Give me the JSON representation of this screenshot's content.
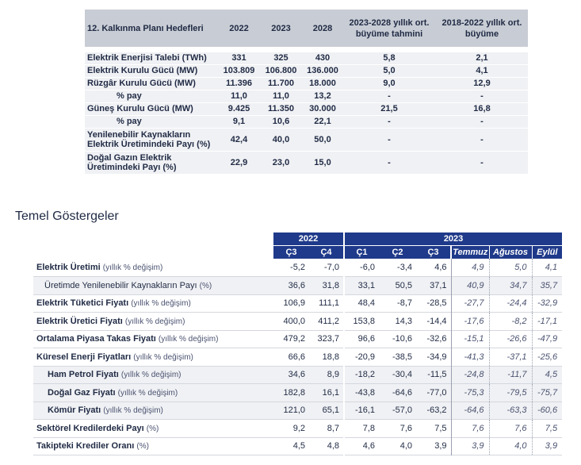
{
  "targets": {
    "headers": [
      "12. Kalkınma Planı Hedefleri",
      "2022",
      "2023",
      "2028",
      "2023-2028 yıllık ort. büyüme tahmini",
      "2018-2022 yıllık ort. büyüme"
    ],
    "rows": [
      {
        "label": "Elektrik Enerjisi Talebi (TWh)",
        "v2022": "331",
        "v2023": "325",
        "v2028": "430",
        "growth_est": "5,8",
        "growth_hist": "2,1"
      },
      {
        "label": "Elektrik Kurulu Gücü (MW)",
        "v2022": "103.809",
        "v2023": "106.800",
        "v2028": "136.000",
        "growth_est": "5,0",
        "growth_hist": "4,1"
      },
      {
        "label": "Rüzgâr Kurulu Gücü (MW)",
        "v2022": "11.396",
        "v2023": "11.700",
        "v2028": "18.000",
        "growth_est": "9,0",
        "growth_hist": "12,9"
      },
      {
        "label": "% pay",
        "v2022": "11,0",
        "v2023": "11,0",
        "v2028": "13,2",
        "growth_est": "-",
        "growth_hist": "-"
      },
      {
        "label": "Güneş Kurulu Gücü (MW)",
        "v2022": "9.425",
        "v2023": "11.350",
        "v2028": "30.000",
        "growth_est": "21,5",
        "growth_hist": "16,8"
      },
      {
        "label": "% pay",
        "v2022": "9,1",
        "v2023": "10,6",
        "v2028": "22,1",
        "growth_est": "-",
        "growth_hist": "-"
      },
      {
        "label": "Yenilenebilir Kaynakların Elektrik Üretimindeki Payı (%)",
        "v2022": "42,4",
        "v2023": "40,0",
        "v2028": "50,0",
        "growth_est": "-",
        "growth_hist": "-"
      },
      {
        "label": "Doğal Gazın Elektrik Üretimindeki Payı (%)",
        "v2022": "22,9",
        "v2023": "23,0",
        "v2028": "15,0",
        "growth_est": "-",
        "growth_hist": "-"
      }
    ]
  },
  "indicators": {
    "title": "Temel Göstergeler",
    "years": [
      "2022",
      "2023"
    ],
    "columns": [
      "Ç3",
      "Ç4",
      "Ç1",
      "Ç2",
      "Ç3",
      "Temmuz",
      "Ağustos",
      "Eylül"
    ],
    "rows": [
      {
        "label": "Elektrik Üretimi",
        "unit": "(yıllık % değişim)",
        "values": [
          "-5,2",
          "-7,0",
          "-6,0",
          "-3,4",
          "4,6"
        ],
        "monthly": [
          "4,9",
          "5,0",
          "4,1"
        ]
      },
      {
        "label": "Üretimde Yenilenebilir Kaynakların Payı",
        "unit": "(%)",
        "values": [
          "36,6",
          "31,8",
          "33,1",
          "50,5",
          "37,1"
        ],
        "monthly": [
          "40,9",
          "34,7",
          "35,7"
        ]
      },
      {
        "label": "Elektrik Tüketici Fiyatı",
        "unit": "(yıllık % değişim)",
        "values": [
          "106,9",
          "111,1",
          "48,4",
          "-8,7",
          "-28,5"
        ],
        "monthly": [
          "-27,7",
          "-24,4",
          "-32,9"
        ]
      },
      {
        "label": "Elektrik Üretici Fiyatı",
        "unit": "(yıllık % değişim)",
        "values": [
          "400,0",
          "411,2",
          "153,8",
          "14,3",
          "-14,4"
        ],
        "monthly": [
          "-17,6",
          "-8,2",
          "-17,1"
        ]
      },
      {
        "label": "Ortalama Piyasa Takas Fiyatı",
        "unit": "(yıllık % değişim)",
        "values": [
          "479,2",
          "323,7",
          "96,6",
          "-10,6",
          "-32,6"
        ],
        "monthly": [
          "-15,1",
          "-26,6",
          "-47,9"
        ]
      },
      {
        "label": "Küresel Enerji Fiyatları",
        "unit": "(yıllık % değişim)",
        "values": [
          "66,6",
          "18,8",
          "-20,9",
          "-38,5",
          "-34,9"
        ],
        "monthly": [
          "-41,3",
          "-37,1",
          "-25,6"
        ]
      },
      {
        "label": "Ham Petrol Fiyatı",
        "unit": "(yıllık % değişim)",
        "values": [
          "34,6",
          "8,9",
          "-18,2",
          "-30,4",
          "-11,5"
        ],
        "monthly": [
          "-24,8",
          "-11,7",
          "4,5"
        ]
      },
      {
        "label": "Doğal Gaz Fiyatı",
        "unit": "(yıllık % değişim)",
        "values": [
          "182,8",
          "16,1",
          "-43,8",
          "-64,6",
          "-77,0"
        ],
        "monthly": [
          "-75,3",
          "-79,5",
          "-75,7"
        ]
      },
      {
        "label": "Kömür Fiyatı",
        "unit": "(yıllık % değişim)",
        "values": [
          "121,0",
          "65,1",
          "-16,1",
          "-57,0",
          "-63,2"
        ],
        "monthly": [
          "-64,6",
          "-63,3",
          "-60,6"
        ]
      },
      {
        "label": "Sektörel Kredilerdeki Payı",
        "unit": "(%)",
        "values": [
          "9,2",
          "8,7",
          "7,8",
          "7,6",
          "7,5"
        ],
        "monthly": [
          "7,6",
          "7,6",
          "7,5"
        ]
      },
      {
        "label": "Takipteki Krediler Oranı",
        "unit": "(%)",
        "values": [
          "4,5",
          "4,8",
          "4,6",
          "4,0",
          "3,9"
        ],
        "monthly": [
          "3,9",
          "4,0",
          "3,9"
        ]
      }
    ]
  }
}
